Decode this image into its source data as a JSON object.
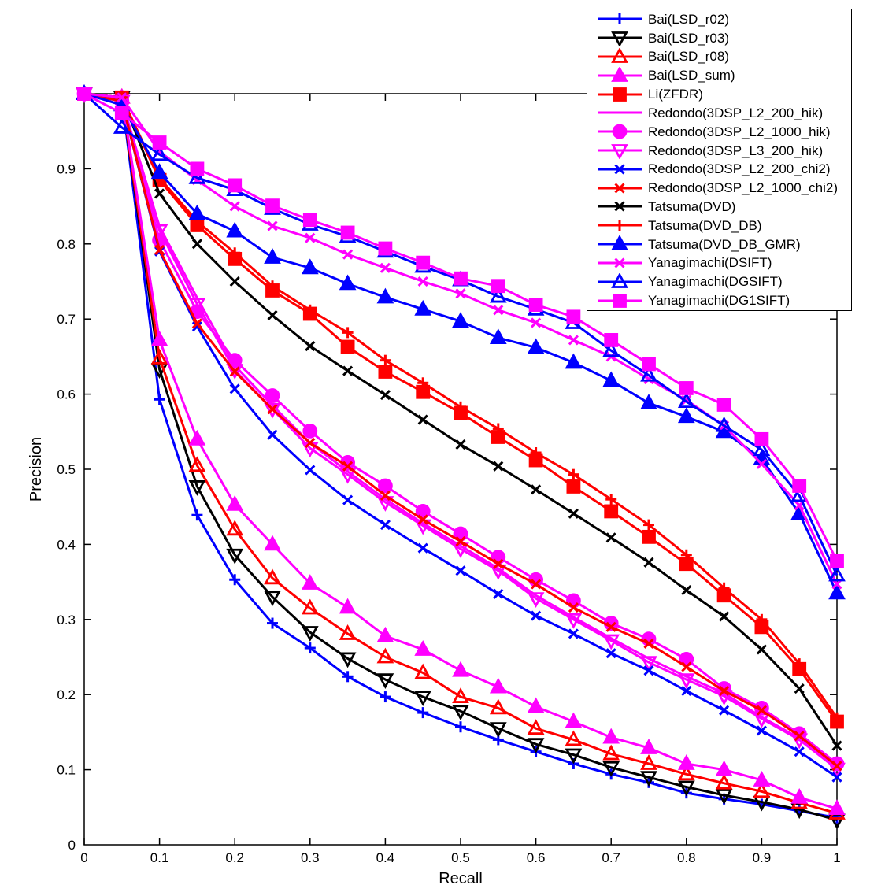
{
  "chart_data": {
    "type": "line",
    "title": "",
    "xlabel": "Recall",
    "ylabel": "Precision",
    "xlim": [
      0,
      1
    ],
    "ylim": [
      0,
      1
    ],
    "grid": false,
    "legend_position": "top-right",
    "xticks": [
      0,
      0.1,
      0.2,
      0.3,
      0.4,
      0.5,
      0.6,
      0.7,
      0.8,
      0.9,
      1
    ],
    "xtick_labels": [
      "0",
      "0.1",
      "0.2",
      "0.3",
      "0.4",
      "0.5",
      "0.6",
      "0.7",
      "0.8",
      "0.9",
      "1"
    ],
    "yticks": [
      0,
      0.1,
      0.2,
      0.3,
      0.4,
      0.5,
      0.6,
      0.7,
      0.8,
      0.9
    ],
    "ytick_labels": [
      "0",
      "0.1",
      "0.2",
      "0.3",
      "0.4",
      "0.5",
      "0.6",
      "0.7",
      "0.8",
      "0.9"
    ],
    "x": [
      0,
      0.05,
      0.1,
      0.15,
      0.2,
      0.25,
      0.3,
      0.35,
      0.4,
      0.45,
      0.5,
      0.55,
      0.6,
      0.65,
      0.7,
      0.75,
      0.8,
      0.85,
      0.9,
      0.95,
      1
    ],
    "series": [
      {
        "label": "Bai(LSD_r02)",
        "color": "#0000ff",
        "marker": "plus",
        "filled": false,
        "values": [
          1.0,
          0.995,
          0.593,
          0.439,
          0.353,
          0.295,
          0.262,
          0.224,
          0.197,
          0.176,
          0.157,
          0.14,
          0.124,
          0.108,
          0.094,
          0.083,
          0.069,
          0.061,
          0.054,
          0.045,
          0.036
        ]
      },
      {
        "label": "Bai(LSD_r03)",
        "color": "#000000",
        "marker": "triangle-down",
        "filled": false,
        "values": [
          1.0,
          0.995,
          0.633,
          0.477,
          0.386,
          0.33,
          0.283,
          0.248,
          0.22,
          0.197,
          0.178,
          0.155,
          0.134,
          0.12,
          0.103,
          0.09,
          0.077,
          0.066,
          0.057,
          0.047,
          0.033
        ]
      },
      {
        "label": "Bai(LSD_r08)",
        "color": "#ff0000",
        "marker": "triangle-up",
        "filled": false,
        "values": [
          1.0,
          0.995,
          0.648,
          0.505,
          0.42,
          0.355,
          0.315,
          0.281,
          0.25,
          0.229,
          0.197,
          0.182,
          0.155,
          0.14,
          0.121,
          0.108,
          0.094,
          0.082,
          0.071,
          0.056,
          0.042
        ]
      },
      {
        "label": "Bai(LSD_sum)",
        "color": "#ff00ff",
        "marker": "triangle-up",
        "filled": true,
        "values": [
          1.0,
          0.995,
          0.672,
          0.54,
          0.453,
          0.4,
          0.348,
          0.316,
          0.278,
          0.26,
          0.232,
          0.21,
          0.184,
          0.164,
          0.143,
          0.129,
          0.108,
          0.1,
          0.086,
          0.063,
          0.048
        ]
      },
      {
        "label": "Li(ZFDR)",
        "color": "#ff0000",
        "marker": "square",
        "filled": true,
        "values": [
          1.0,
          0.995,
          0.885,
          0.825,
          0.78,
          0.738,
          0.707,
          0.663,
          0.63,
          0.603,
          0.575,
          0.543,
          0.512,
          0.477,
          0.444,
          0.41,
          0.374,
          0.332,
          0.29,
          0.234,
          0.164
        ]
      },
      {
        "label": "Redondo(3DSP_L2_200_hik)",
        "color": "#ff00ff",
        "marker": "none",
        "filled": false,
        "values": [
          1.0,
          0.99,
          0.823,
          0.728,
          0.638,
          0.585,
          0.535,
          0.497,
          0.46,
          0.428,
          0.398,
          0.368,
          0.332,
          0.303,
          0.275,
          0.248,
          0.224,
          0.202,
          0.17,
          0.142,
          0.103
        ]
      },
      {
        "label": "Redondo(3DSP_L2_1000_hik)",
        "color": "#ff00ff",
        "marker": "circle",
        "filled": true,
        "values": [
          1.0,
          0.99,
          0.805,
          0.71,
          0.645,
          0.598,
          0.551,
          0.509,
          0.478,
          0.444,
          0.414,
          0.383,
          0.353,
          0.325,
          0.295,
          0.274,
          0.247,
          0.208,
          0.182,
          0.148,
          0.108
        ]
      },
      {
        "label": "Redondo(3DSP_L3_200_hik)",
        "color": "#ff00ff",
        "marker": "triangle-down",
        "filled": false,
        "values": [
          1.0,
          0.99,
          0.818,
          0.72,
          0.632,
          0.58,
          0.528,
          0.493,
          0.456,
          0.425,
          0.394,
          0.365,
          0.328,
          0.3,
          0.272,
          0.243,
          0.22,
          0.198,
          0.168,
          0.14,
          0.101
        ]
      },
      {
        "label": "Redondo(3DSP_L2_200_chi2)",
        "color": "#0000ff",
        "marker": "x",
        "filled": false,
        "values": [
          1.0,
          0.99,
          0.79,
          0.69,
          0.607,
          0.546,
          0.499,
          0.459,
          0.426,
          0.395,
          0.365,
          0.334,
          0.305,
          0.281,
          0.255,
          0.232,
          0.205,
          0.179,
          0.152,
          0.124,
          0.09
        ]
      },
      {
        "label": "Redondo(3DSP_L2_1000_chi2)",
        "color": "#ff0000",
        "marker": "x",
        "filled": false,
        "values": [
          1.0,
          0.99,
          0.792,
          0.694,
          0.63,
          0.58,
          0.535,
          0.504,
          0.465,
          0.433,
          0.404,
          0.374,
          0.347,
          0.316,
          0.29,
          0.268,
          0.237,
          0.205,
          0.179,
          0.145,
          0.105
        ]
      },
      {
        "label": "Tatsuma(DVD)",
        "color": "#000000",
        "marker": "x",
        "filled": false,
        "values": [
          1.0,
          0.995,
          0.867,
          0.8,
          0.75,
          0.705,
          0.664,
          0.631,
          0.599,
          0.566,
          0.533,
          0.504,
          0.473,
          0.441,
          0.409,
          0.376,
          0.339,
          0.304,
          0.26,
          0.208,
          0.132
        ]
      },
      {
        "label": "Tatsuma(DVD_DB)",
        "color": "#ff0000",
        "marker": "plus",
        "filled": false,
        "values": [
          1.0,
          0.995,
          0.888,
          0.83,
          0.788,
          0.744,
          0.712,
          0.682,
          0.645,
          0.615,
          0.583,
          0.554,
          0.522,
          0.493,
          0.46,
          0.426,
          0.386,
          0.342,
          0.3,
          0.241,
          0.169
        ]
      },
      {
        "label": "Tatsuma(DVD_DB_GMR)",
        "color": "#0000ff",
        "marker": "triangle-up",
        "filled": true,
        "values": [
          1.0,
          0.985,
          0.895,
          0.84,
          0.817,
          0.782,
          0.768,
          0.747,
          0.729,
          0.713,
          0.697,
          0.675,
          0.662,
          0.642,
          0.618,
          0.588,
          0.57,
          0.55,
          0.514,
          0.441,
          0.335
        ]
      },
      {
        "label": "Yanagimachi(DSIFT)",
        "color": "#ff00ff",
        "marker": "x",
        "filled": false,
        "values": [
          1.0,
          0.995,
          0.923,
          0.885,
          0.85,
          0.824,
          0.808,
          0.786,
          0.768,
          0.75,
          0.734,
          0.712,
          0.695,
          0.672,
          0.65,
          0.62,
          0.592,
          0.558,
          0.507,
          0.452,
          0.347
        ]
      },
      {
        "label": "Yanagimachi(DGSIFT)",
        "color": "#0000ff",
        "marker": "triangle-up",
        "filled": false,
        "values": [
          1.0,
          0.955,
          0.919,
          0.888,
          0.872,
          0.847,
          0.826,
          0.81,
          0.79,
          0.77,
          0.752,
          0.73,
          0.713,
          0.695,
          0.658,
          0.625,
          0.59,
          0.558,
          0.526,
          0.465,
          0.359
        ]
      },
      {
        "label": "Yanagimachi(DG1SIFT)",
        "color": "#ff00ff",
        "marker": "square",
        "filled": true,
        "values": [
          1.0,
          0.974,
          0.935,
          0.9,
          0.878,
          0.851,
          0.832,
          0.815,
          0.794,
          0.775,
          0.754,
          0.744,
          0.719,
          0.703,
          0.672,
          0.64,
          0.608,
          0.586,
          0.54,
          0.478,
          0.378
        ]
      }
    ]
  }
}
